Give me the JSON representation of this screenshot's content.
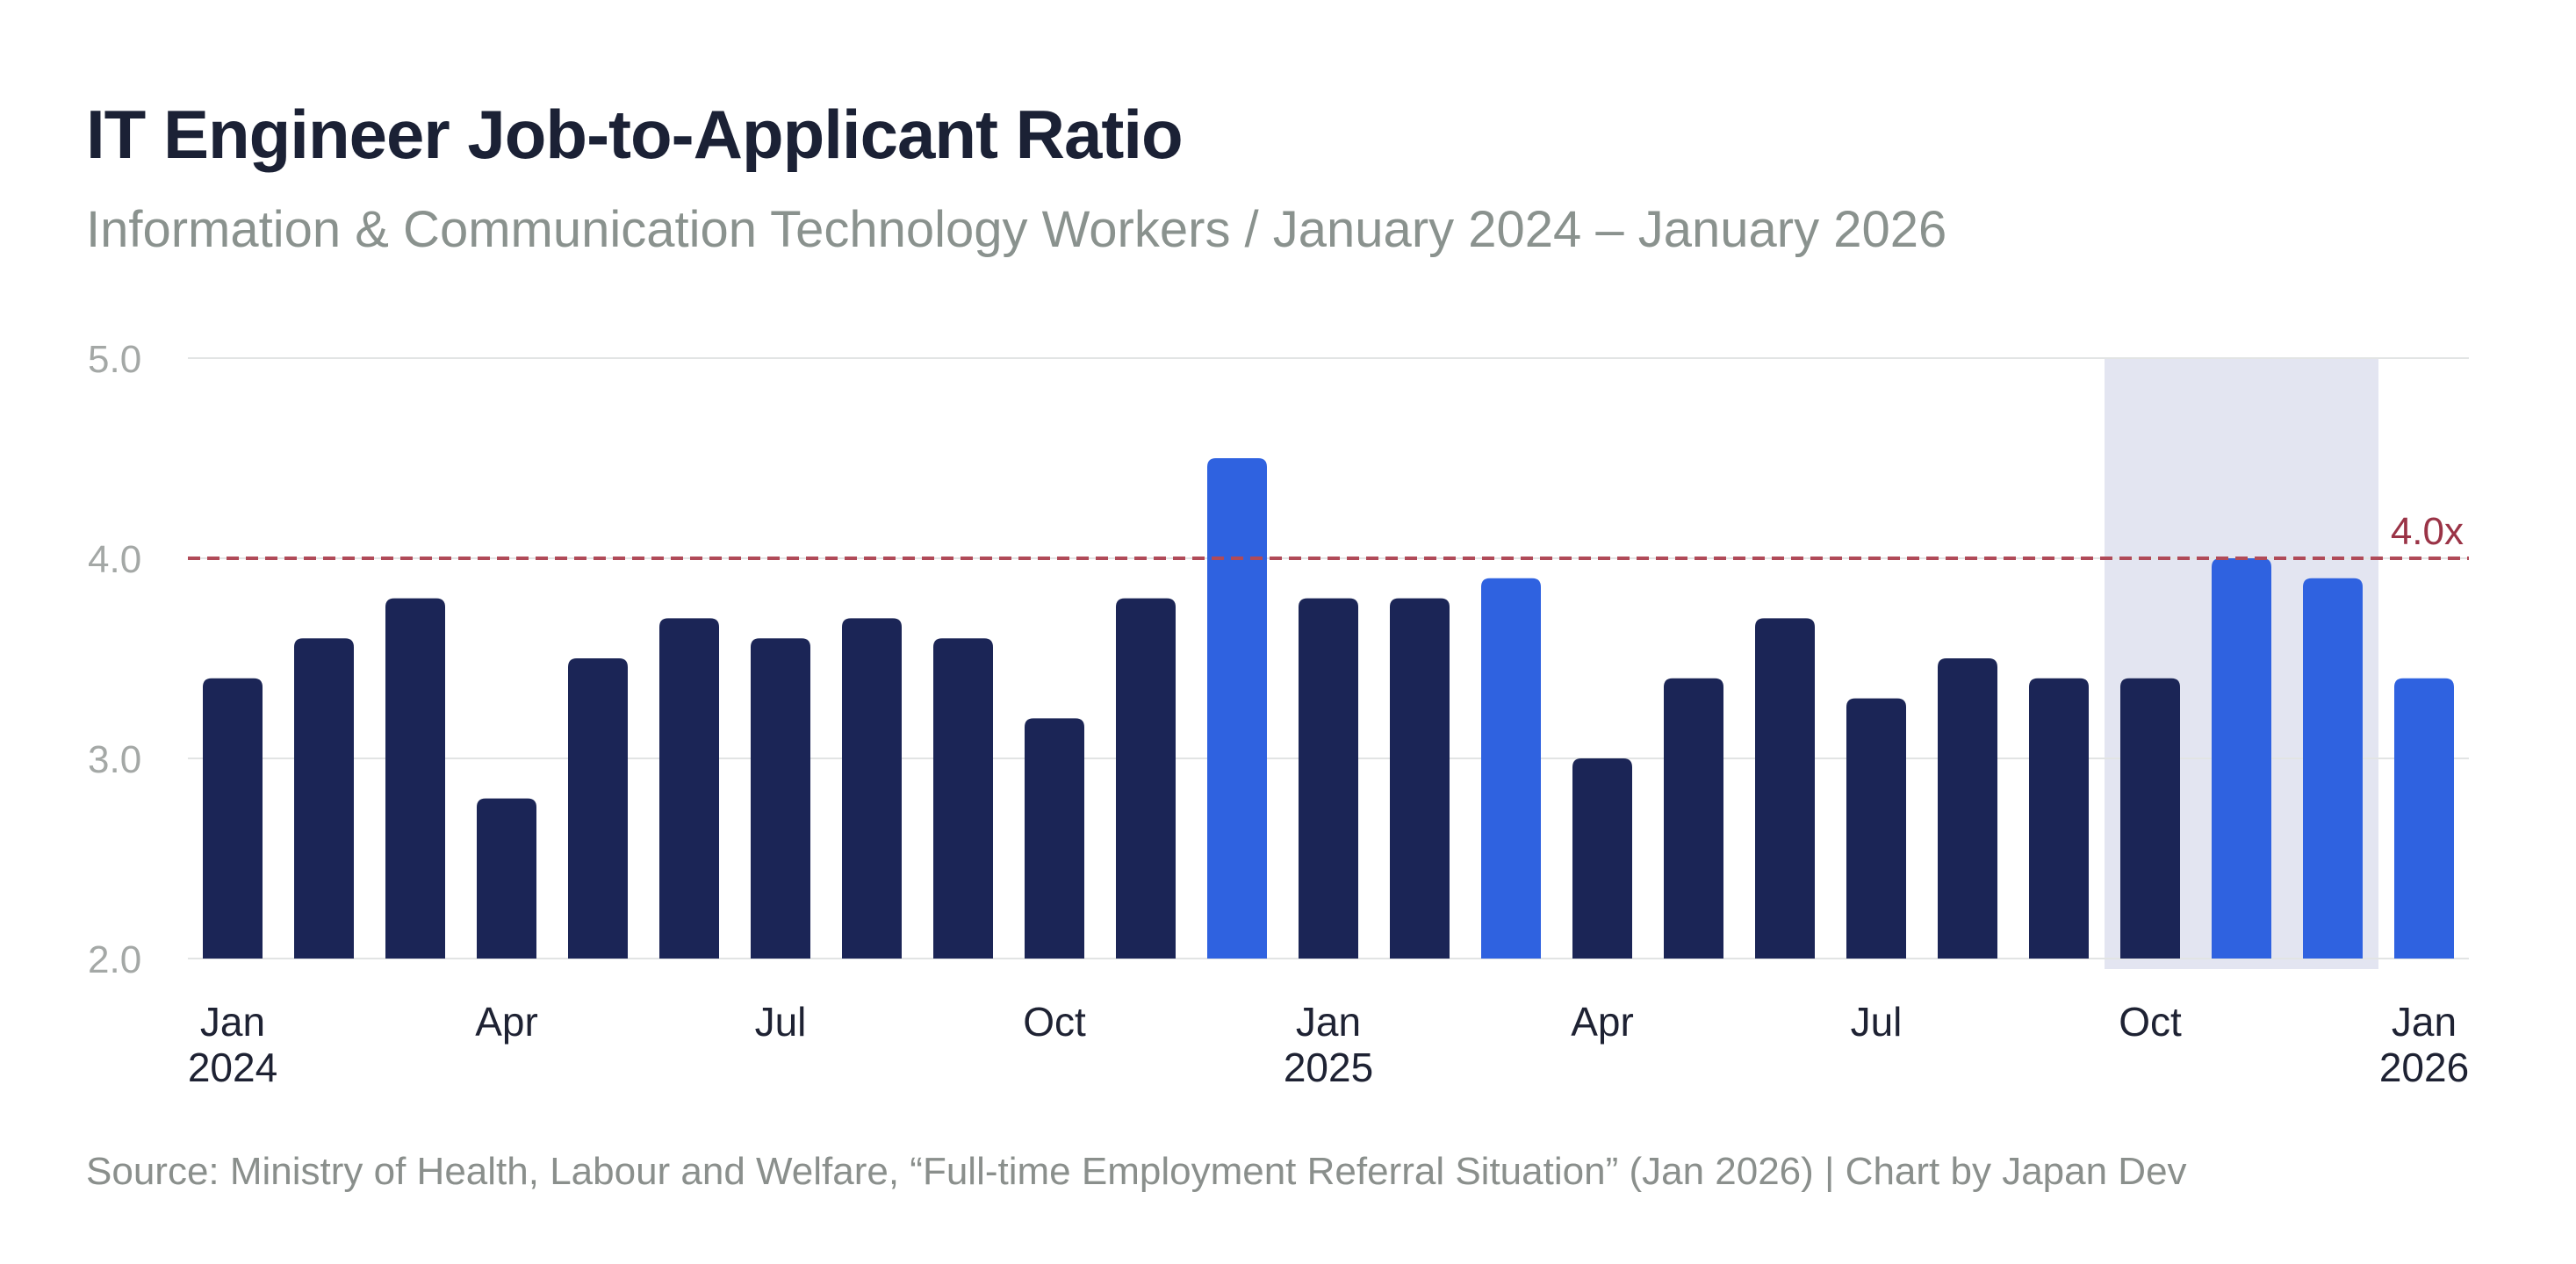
{
  "chart_data": {
    "type": "bar",
    "title": "IT Engineer Job-to-Applicant Ratio",
    "subtitle": "Information & Communication Technology Workers / January 2024 – January 2026",
    "source": "Source: Ministry of Health, Labour and Welfare, “Full-time Employment Referral Situation” (Jan 2026) | Chart by Japan Dev",
    "x_months": [
      "2024-01",
      "2024-02",
      "2024-03",
      "2024-04",
      "2024-05",
      "2024-06",
      "2024-07",
      "2024-08",
      "2024-09",
      "2024-10",
      "2024-11",
      "2024-12",
      "2025-01",
      "2025-02",
      "2025-03",
      "2025-04",
      "2025-05",
      "2025-06",
      "2025-07",
      "2025-08",
      "2025-09",
      "2025-10",
      "2025-11",
      "2025-12",
      "2026-01"
    ],
    "values": [
      3.4,
      3.6,
      3.8,
      2.8,
      3.5,
      3.7,
      3.6,
      3.7,
      3.6,
      3.2,
      3.8,
      4.5,
      3.8,
      3.8,
      3.9,
      3.0,
      3.4,
      3.7,
      3.3,
      3.5,
      3.4,
      3.4,
      4.0,
      3.9,
      3.4
    ],
    "highlighted": [
      false,
      false,
      false,
      false,
      false,
      false,
      false,
      false,
      false,
      false,
      false,
      true,
      false,
      false,
      true,
      false,
      false,
      false,
      false,
      false,
      false,
      false,
      true,
      true,
      true
    ],
    "ylim": [
      2.0,
      5.0
    ],
    "yticks": [
      "5.0",
      "4.0",
      "3.0",
      "2.0"
    ],
    "ytick_values": [
      5.0,
      4.0,
      3.0,
      2.0
    ],
    "xtick_labels": [
      {
        "index": 0,
        "month": "Jan",
        "year": "2024"
      },
      {
        "index": 3,
        "month": "Apr",
        "year": ""
      },
      {
        "index": 6,
        "month": "Jul",
        "year": ""
      },
      {
        "index": 9,
        "month": "Oct",
        "year": ""
      },
      {
        "index": 12,
        "month": "Jan",
        "year": "2025"
      },
      {
        "index": 15,
        "month": "Apr",
        "year": ""
      },
      {
        "index": 18,
        "month": "Jul",
        "year": ""
      },
      {
        "index": 21,
        "month": "Oct",
        "year": ""
      },
      {
        "index": 24,
        "month": "Jan",
        "year": "2026"
      }
    ],
    "reference_line": {
      "value": 4.0,
      "label": "4.0x"
    },
    "shaded_region": {
      "from": "2025-10",
      "to": "2025-12"
    },
    "grid": true,
    "xlabel": "",
    "ylabel": "",
    "colors": {
      "bar": "#1b2556",
      "highlight": "#2f62e0",
      "reference_line": "#b04a58",
      "shade": "#e3e5f1",
      "grid": "#e2e4e4"
    }
  }
}
